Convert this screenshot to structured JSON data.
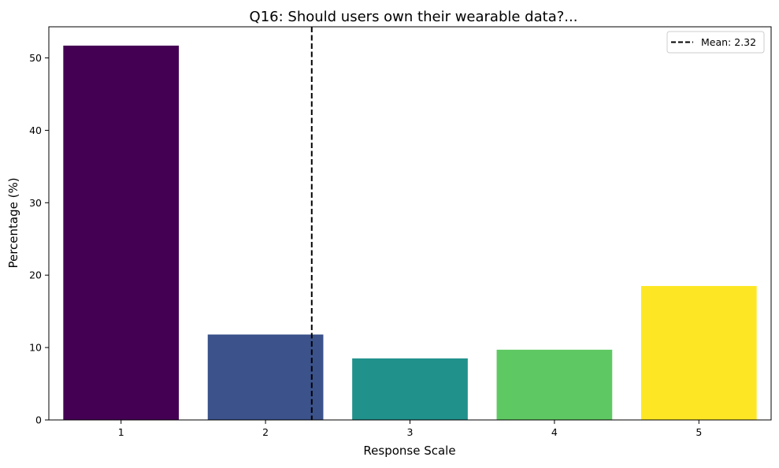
{
  "chart_data": {
    "type": "bar",
    "title": "Q16: Should users own their wearable data?...",
    "xlabel": "Response Scale",
    "ylabel": "Percentage (%)",
    "categories": [
      "1",
      "2",
      "3",
      "4",
      "5"
    ],
    "values": [
      51.7,
      11.8,
      8.5,
      9.7,
      18.5
    ],
    "colors": [
      "#440154",
      "#3b528b",
      "#21918c",
      "#5ec962",
      "#fde725"
    ],
    "ylim": [
      0,
      54.3
    ],
    "yticks": [
      0,
      10,
      20,
      30,
      40,
      50
    ],
    "grid": false,
    "mean": {
      "value": 2.32,
      "label": "Mean: 2.32",
      "style": "dashed",
      "color": "#000000"
    },
    "legend_placement": "top-right"
  }
}
